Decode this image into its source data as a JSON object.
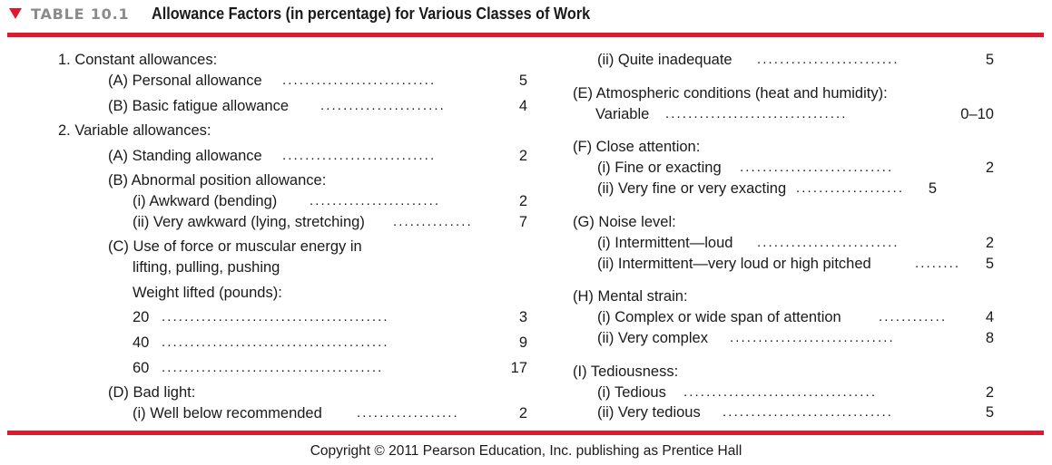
{
  "header": {
    "table_number": "TABLE 10.1",
    "title": "Allowance Factors (in percentage) for Various Classes of Work"
  },
  "left_column": {
    "constant_heading": "1. Constant allowances:",
    "personal": {
      "label": "(A) Personal allowance",
      "value": "5"
    },
    "basic_fatigue": {
      "label": "(B) Basic fatigue allowance",
      "value": "4"
    },
    "variable_heading": "2. Variable allowances:",
    "standing": {
      "label": "(A) Standing allowance",
      "value": "2"
    },
    "abnormal_heading": "(B) Abnormal position allowance:",
    "awkward": {
      "label": "(i)  Awkward (bending)",
      "value": "2"
    },
    "very_awkward": {
      "label": "(ii) Very awkward (lying, stretching)",
      "value": "7"
    },
    "force_heading_1": "(C)  Use of force or muscular energy in",
    "force_heading_2": "lifting, pulling, pushing",
    "weight_heading": "Weight lifted (pounds):",
    "w20": {
      "label": "20",
      "value": "3"
    },
    "w40": {
      "label": "40",
      "value": "9"
    },
    "w60": {
      "label": "60",
      "value": "17"
    },
    "bad_light_heading": "(D) Bad light:",
    "well_below": {
      "label": "(i)  Well below recommended",
      "value": "2"
    }
  },
  "right_column": {
    "quite_inadequate": {
      "label": "(ii) Quite inadequate",
      "value": "5"
    },
    "atmospheric_heading": "(E)  Atmospheric conditions (heat and humidity):",
    "variable": {
      "label": "Variable",
      "value": "0–10"
    },
    "close_attention_heading": "(F) Close attention:",
    "fine_exacting": {
      "label": "(i) Fine or exacting",
      "value": "2"
    },
    "very_fine": {
      "label": "(ii) Very fine or very exacting",
      "value": "5"
    },
    "noise_heading": "(G) Noise level:",
    "intermittent_loud": {
      "label": "(i) Intermittent—loud",
      "value": "2"
    },
    "intermittent_very_loud": {
      "label": "(ii) Intermittent—very loud or high pitched",
      "value": "5"
    },
    "mental_heading": "(H) Mental strain:",
    "complex": {
      "label": "(i) Complex or wide span of attention",
      "value": "4"
    },
    "very_complex": {
      "label": "(ii) Very complex",
      "value": "8"
    },
    "tedious_heading": "(I) Tediousness:",
    "tedious": {
      "label": "(i) Tedious",
      "value": "2"
    },
    "very_tedious": {
      "label": "(ii) Very tedious",
      "value": "5"
    }
  },
  "footer": {
    "copyright": "Copyright © 2011 Pearson Education, Inc. publishing as Prentice Hall"
  }
}
